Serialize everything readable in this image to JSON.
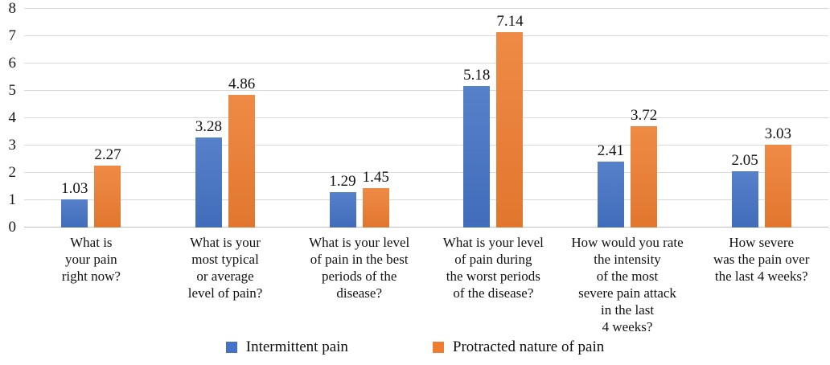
{
  "figure": {
    "background_color": "#ffffff",
    "text_color": "#111111"
  },
  "chart_data": {
    "type": "bar",
    "title": "",
    "xlabel": "",
    "ylabel": "",
    "categories": [
      [
        "What is",
        "your pain",
        "right now?"
      ],
      [
        "What is your",
        "most typical",
        "or average",
        "level of pain?"
      ],
      [
        "What is your level",
        "of pain in the best",
        "periods of the",
        "disease?"
      ],
      [
        "What is your level",
        "of pain during",
        "the worst periods",
        "of the disease?"
      ],
      [
        "How would you rate",
        "the intensity",
        "of the most",
        "severe pain attack",
        "in the last",
        "4 weeks?"
      ],
      [
        "How severe",
        "was the pain over",
        "the last 4 weeks?"
      ]
    ],
    "series": [
      {
        "name": "Intermittent pain",
        "color": "#4472C4",
        "values": [
          1.03,
          3.28,
          1.29,
          5.18,
          2.41,
          2.05
        ]
      },
      {
        "name": "Protracted nature of pain",
        "color": "#ED7D31",
        "values": [
          2.27,
          4.86,
          1.45,
          7.14,
          3.72,
          3.03
        ]
      }
    ],
    "value_labels_shown": true,
    "value_label_decimals": 2,
    "y_axis": {
      "min": 0,
      "max": 8,
      "step": 1,
      "tick_labels": [
        "0",
        "1",
        "2",
        "3",
        "4",
        "5",
        "6",
        "7",
        "8"
      ]
    },
    "grid": "horizontal",
    "gridline_color": "#D9D9D9",
    "baseline_color": "#BFBFBF",
    "legend_position": "bottom"
  }
}
